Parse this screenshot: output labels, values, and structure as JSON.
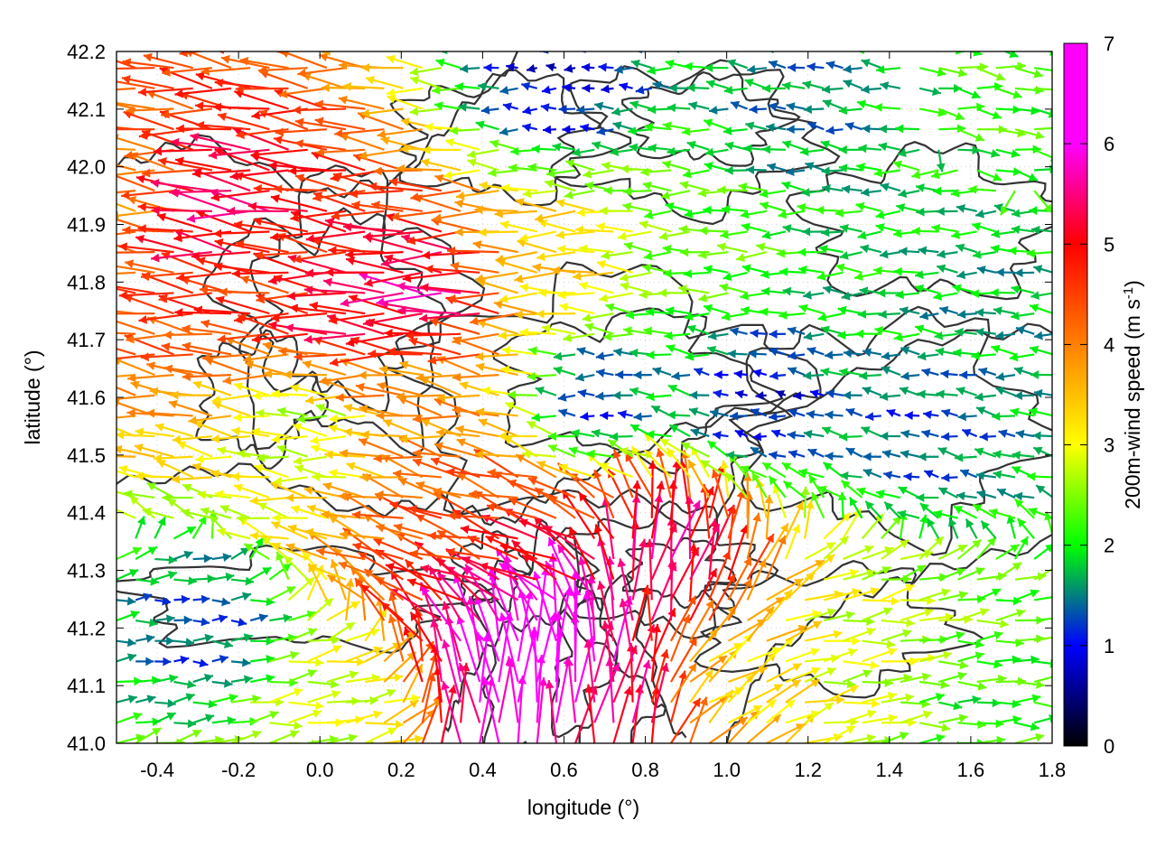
{
  "chart_data": {
    "type": "vector-field",
    "xlabel": "longitude (°)",
    "ylabel": "latitude (°)",
    "colorbar_label": "200m-wind speed (m s-1)",
    "xlim": [
      -0.5,
      1.8
    ],
    "ylim": [
      41.0,
      42.2
    ],
    "xticks": [
      -0.4,
      -0.2,
      0.0,
      0.2,
      0.4,
      0.6,
      0.8,
      1.0,
      1.2,
      1.4,
      1.6,
      1.8
    ],
    "xtick_labels": [
      "-0.4",
      "-0.2",
      "0.0",
      "0.2",
      "0.4",
      "0.6",
      "0.8",
      "1.0",
      "1.2",
      "1.4",
      "1.6",
      "1.8"
    ],
    "yticks": [
      41.0,
      41.1,
      41.2,
      41.3,
      41.4,
      41.5,
      41.6,
      41.7,
      41.8,
      41.9,
      42.0,
      42.1,
      42.2
    ],
    "ytick_labels": [
      "41.0",
      "41.1",
      "41.2",
      "41.3",
      "41.4",
      "41.5",
      "41.6",
      "41.7",
      "41.8",
      "41.9",
      "42.0",
      "42.1",
      "42.2"
    ],
    "colorbar": {
      "range": [
        0,
        7
      ],
      "ticks": [
        0,
        1,
        2,
        3,
        4,
        5,
        6,
        7
      ],
      "tick_labels": [
        "0",
        "1",
        "2",
        "3",
        "4",
        "5",
        "6",
        "7"
      ],
      "colors": [
        "#000000",
        "#0000ff",
        "#00ff00",
        "#ffff00",
        "#ff8000",
        "#ff0000",
        "#ff00ff"
      ]
    },
    "grid": "dotted",
    "contour_color": "#333333",
    "vectors": [
      {
        "lon": -0.45,
        "lat": 41.95,
        "u": -3.5,
        "v": 0.4,
        "speed": 4.0
      },
      {
        "lon": -0.2,
        "lat": 41.92,
        "u": -5.0,
        "v": 0.6,
        "speed": 5.4
      },
      {
        "lon": -0.1,
        "lat": 41.8,
        "u": -4.2,
        "v": 0.5,
        "speed": 4.6
      },
      {
        "lon": 0.1,
        "lat": 41.75,
        "u": -4.8,
        "v": 0.3,
        "speed": 5.2
      },
      {
        "lon": 0.3,
        "lat": 41.77,
        "u": -5.5,
        "v": 0.2,
        "speed": 5.6
      },
      {
        "lon": 0.6,
        "lat": 41.82,
        "u": -3.2,
        "v": 0.1,
        "speed": 3.4
      },
      {
        "lon": 1.0,
        "lat": 41.85,
        "u": -2.2,
        "v": 0.0,
        "speed": 2.3
      },
      {
        "lon": 1.4,
        "lat": 41.8,
        "u": -1.8,
        "v": 0.0,
        "speed": 1.9
      },
      {
        "lon": 1.6,
        "lat": 41.75,
        "u": -1.6,
        "v": 0.1,
        "speed": 1.7
      },
      {
        "lon": 0.0,
        "lat": 41.55,
        "u": -2.6,
        "v": 0.2,
        "speed": 2.7
      },
      {
        "lon": 0.3,
        "lat": 41.6,
        "u": -3.6,
        "v": 0.6,
        "speed": 3.8
      },
      {
        "lon": 0.7,
        "lat": 41.6,
        "u": -1.0,
        "v": 0.0,
        "speed": 1.1
      },
      {
        "lon": 1.1,
        "lat": 41.6,
        "u": -0.8,
        "v": 0.1,
        "speed": 0.9
      },
      {
        "lon": 1.5,
        "lat": 41.55,
        "u": -1.2,
        "v": 0.2,
        "speed": 1.3
      },
      {
        "lon": 0.4,
        "lat": 41.38,
        "u": -4.0,
        "v": 1.2,
        "speed": 4.3
      },
      {
        "lon": 0.5,
        "lat": 41.3,
        "u": -4.5,
        "v": 1.5,
        "speed": 5.1
      },
      {
        "lon": 0.52,
        "lat": 41.18,
        "u": -0.4,
        "v": 3.2,
        "speed": 6.4
      },
      {
        "lon": 0.56,
        "lat": 41.12,
        "u": 0.4,
        "v": 3.0,
        "speed": 6.6
      },
      {
        "lon": 0.7,
        "lat": 41.05,
        "u": 0.3,
        "v": 2.0,
        "speed": 5.4
      },
      {
        "lon": 0.85,
        "lat": 41.3,
        "u": 0.5,
        "v": 1.8,
        "speed": 5.5
      },
      {
        "lon": 1.0,
        "lat": 41.1,
        "u": 1.5,
        "v": 1.0,
        "speed": 3.2
      },
      {
        "lon": 1.3,
        "lat": 41.15,
        "u": 2.6,
        "v": 0.3,
        "speed": 2.8
      },
      {
        "lon": 1.6,
        "lat": 41.05,
        "u": 2.0,
        "v": 0.0,
        "speed": 2.1
      },
      {
        "lon": -0.3,
        "lat": 41.2,
        "u": 1.2,
        "v": 0.0,
        "speed": 1.3
      },
      {
        "lon": 0.0,
        "lat": 41.05,
        "u": 2.6,
        "v": 0.3,
        "speed": 2.8
      },
      {
        "lon": 0.6,
        "lat": 42.15,
        "u": -0.8,
        "v": 0.0,
        "speed": 0.9
      },
      {
        "lon": 1.2,
        "lat": 42.1,
        "u": -1.4,
        "v": 0.2,
        "speed": 1.5
      },
      {
        "lon": 1.7,
        "lat": 42.15,
        "u": 2.0,
        "v": -0.3,
        "speed": 2.2
      }
    ]
  }
}
